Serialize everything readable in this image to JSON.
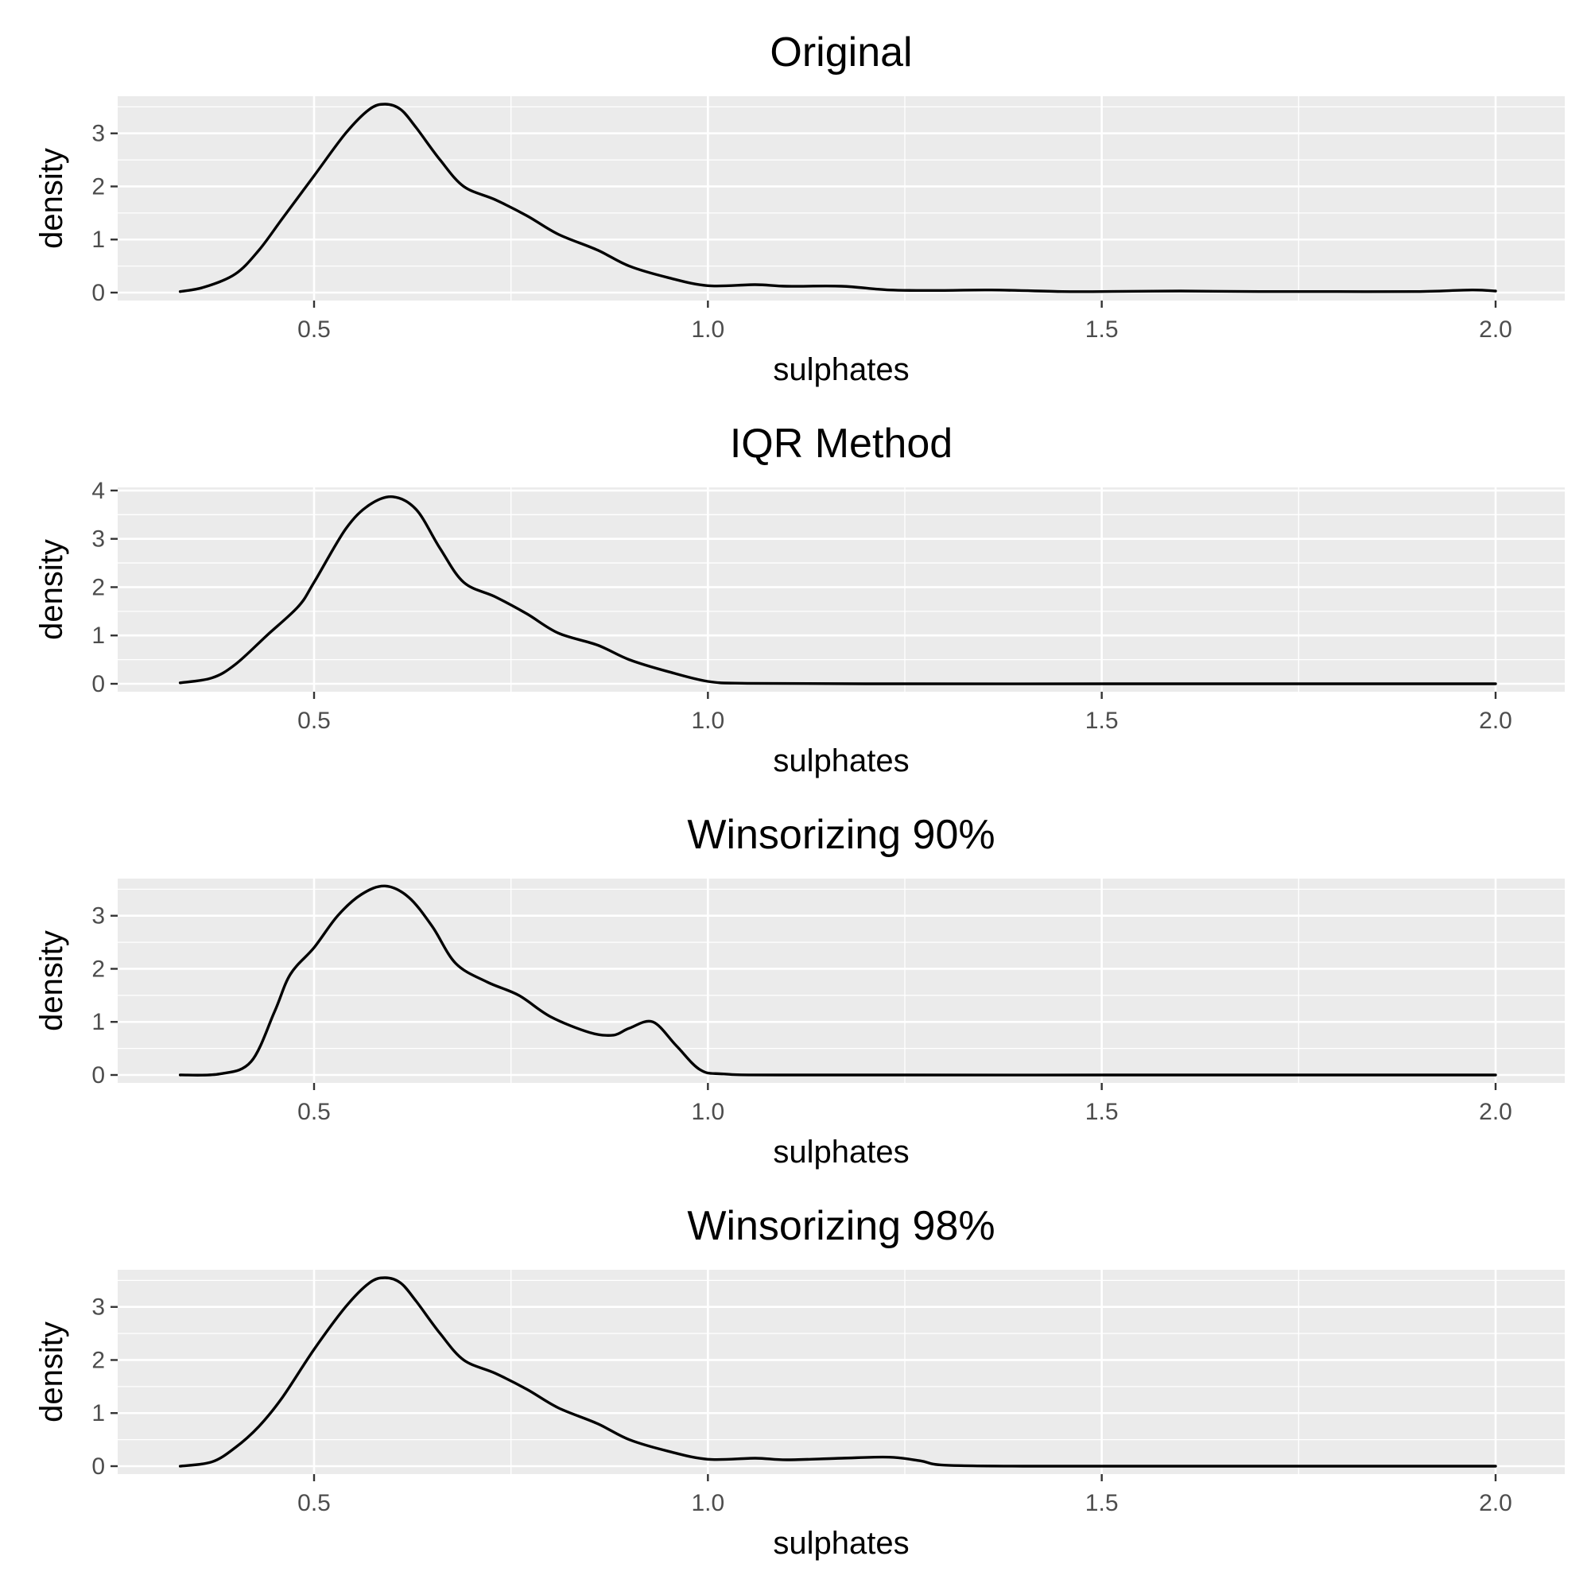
{
  "chart_data": [
    {
      "type": "line",
      "title": "Original",
      "xlabel": "sulphates",
      "ylabel": "density",
      "xlim": [
        0.33,
        2.0
      ],
      "ylim": [
        0,
        3.55
      ],
      "x_ticks": [
        "0.5",
        "1.0",
        "1.5",
        "2.0"
      ],
      "y_ticks": [
        "0",
        "1",
        "2",
        "3"
      ],
      "grid": true,
      "series": [
        {
          "x": [
            0.33,
            0.36,
            0.4,
            0.43,
            0.46,
            0.5,
            0.54,
            0.57,
            0.59,
            0.61,
            0.63,
            0.66,
            0.69,
            0.73,
            0.77,
            0.81,
            0.86,
            0.9,
            0.95,
            1.0,
            1.06,
            1.1,
            1.17,
            1.23,
            1.3,
            1.36,
            1.45,
            1.5,
            1.6,
            1.7,
            1.8,
            1.9,
            1.97,
            2.0
          ],
          "y": [
            0.02,
            0.1,
            0.35,
            0.8,
            1.4,
            2.2,
            3.0,
            3.45,
            3.55,
            3.45,
            3.1,
            2.5,
            2.0,
            1.75,
            1.45,
            1.1,
            0.8,
            0.5,
            0.28,
            0.13,
            0.15,
            0.12,
            0.12,
            0.05,
            0.04,
            0.05,
            0.02,
            0.02,
            0.03,
            0.02,
            0.02,
            0.02,
            0.05,
            0.03
          ]
        }
      ]
    },
    {
      "type": "line",
      "title": "IQR Method",
      "xlabel": "sulphates",
      "ylabel": "density",
      "xlim": [
        0.33,
        2.0
      ],
      "ylim": [
        0,
        3.9
      ],
      "x_ticks": [
        "0.5",
        "1.0",
        "1.5",
        "2.0"
      ],
      "y_ticks": [
        "0",
        "1",
        "2",
        "3",
        "4"
      ],
      "grid": true,
      "series": [
        {
          "x": [
            0.33,
            0.37,
            0.4,
            0.44,
            0.48,
            0.5,
            0.54,
            0.57,
            0.6,
            0.63,
            0.66,
            0.69,
            0.73,
            0.77,
            0.81,
            0.86,
            0.9,
            0.95,
            1.0,
            1.05,
            1.2,
            1.5,
            1.8,
            2.0
          ],
          "y": [
            0.02,
            0.12,
            0.4,
            1.0,
            1.6,
            2.1,
            3.2,
            3.7,
            3.87,
            3.6,
            2.8,
            2.1,
            1.8,
            1.45,
            1.05,
            0.8,
            0.5,
            0.25,
            0.05,
            0.01,
            0.0,
            0.0,
            0.0,
            0.0
          ]
        }
      ]
    },
    {
      "type": "line",
      "title": "Winsorizing 90%",
      "xlabel": "sulphates",
      "ylabel": "density",
      "xlim": [
        0.33,
        2.0
      ],
      "ylim": [
        0,
        3.55
      ],
      "x_ticks": [
        "0.5",
        "1.0",
        "1.5",
        "2.0"
      ],
      "y_ticks": [
        "0",
        "1",
        "2",
        "3"
      ],
      "grid": true,
      "series": [
        {
          "x": [
            0.33,
            0.38,
            0.42,
            0.45,
            0.47,
            0.5,
            0.53,
            0.56,
            0.59,
            0.62,
            0.65,
            0.68,
            0.72,
            0.76,
            0.8,
            0.85,
            0.88,
            0.9,
            0.93,
            0.96,
            0.99,
            1.02,
            1.1,
            1.5,
            2.0
          ],
          "y": [
            0.0,
            0.02,
            0.25,
            1.2,
            1.9,
            2.4,
            3.0,
            3.4,
            3.56,
            3.35,
            2.8,
            2.1,
            1.75,
            1.5,
            1.1,
            0.8,
            0.75,
            0.88,
            1.0,
            0.55,
            0.1,
            0.02,
            0.0,
            0.0,
            0.0
          ]
        }
      ]
    },
    {
      "type": "line",
      "title": "Winsorizing 98%",
      "xlabel": "sulphates",
      "ylabel": "density",
      "xlim": [
        0.33,
        2.0
      ],
      "ylim": [
        0,
        3.55
      ],
      "x_ticks": [
        "0.5",
        "1.0",
        "1.5",
        "2.0"
      ],
      "y_ticks": [
        "0",
        "1",
        "2",
        "3"
      ],
      "grid": true,
      "series": [
        {
          "x": [
            0.33,
            0.37,
            0.4,
            0.43,
            0.46,
            0.5,
            0.54,
            0.57,
            0.59,
            0.61,
            0.63,
            0.66,
            0.69,
            0.73,
            0.77,
            0.81,
            0.86,
            0.9,
            0.95,
            1.0,
            1.06,
            1.1,
            1.17,
            1.23,
            1.27,
            1.3,
            1.4,
            1.6,
            2.0
          ],
          "y": [
            0.0,
            0.08,
            0.35,
            0.75,
            1.3,
            2.2,
            3.0,
            3.45,
            3.55,
            3.45,
            3.1,
            2.5,
            2.0,
            1.75,
            1.45,
            1.1,
            0.8,
            0.5,
            0.28,
            0.13,
            0.15,
            0.12,
            0.15,
            0.17,
            0.1,
            0.02,
            0.0,
            0.0,
            0.0
          ]
        }
      ]
    }
  ]
}
